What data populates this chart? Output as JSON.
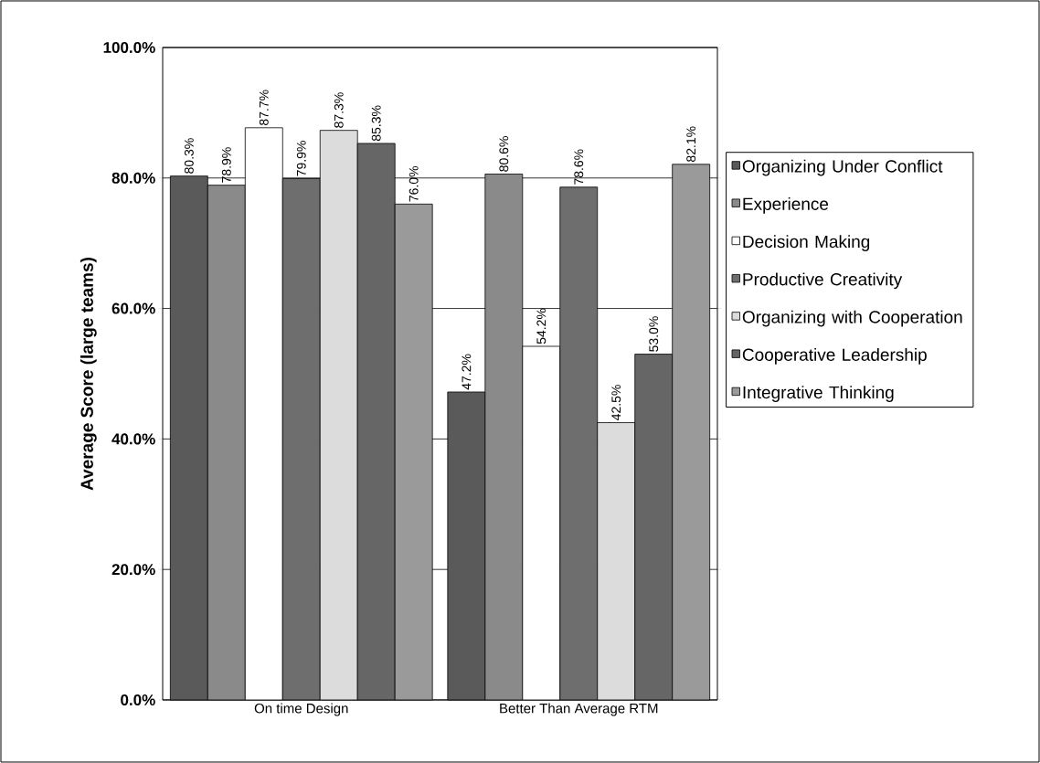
{
  "chart_data": {
    "type": "bar",
    "ylabel": "Average Score (large teams)",
    "categories": [
      "On time Design",
      "Better Than Average RTM"
    ],
    "series": [
      {
        "name": "Organizing Under Conflict",
        "color": "#5a5a5a",
        "values": [
          80.3,
          47.2
        ],
        "value_labels": [
          "80.3%",
          "47.2%"
        ]
      },
      {
        "name": "Experience",
        "color": "#8a8a8a",
        "values": [
          78.9,
          80.6
        ],
        "value_labels": [
          "78.9%",
          "80.6%"
        ]
      },
      {
        "name": "Decision Making",
        "color": "#ffffff",
        "values": [
          87.7,
          54.2
        ],
        "value_labels": [
          "87.7%",
          "54.2%"
        ]
      },
      {
        "name": "Productive Creativity",
        "color": "#6e6e6e",
        "values": [
          79.9,
          78.6
        ],
        "value_labels": [
          "79.9%",
          "78.6%"
        ]
      },
      {
        "name": "Organizing with Cooperation",
        "color": "#dcdcdc",
        "values": [
          87.3,
          42.5
        ],
        "value_labels": [
          "87.3%",
          "42.5%"
        ]
      },
      {
        "name": "Cooperative Leadership",
        "color": "#666666",
        "values": [
          85.3,
          53.0
        ],
        "value_labels": [
          "85.3%",
          "53.0%"
        ]
      },
      {
        "name": "Integrative Thinking",
        "color": "#9a9a9a",
        "values": [
          76.0,
          82.1
        ],
        "value_labels": [
          "76.0%",
          "82.1%"
        ]
      }
    ],
    "ylim": [
      0,
      100
    ],
    "yticks": [
      {
        "value": 0,
        "label": "0.0%"
      },
      {
        "value": 20,
        "label": "20.0%"
      },
      {
        "value": 40,
        "label": "40.0%"
      },
      {
        "value": 60,
        "label": "60.0%"
      },
      {
        "value": 80,
        "label": "80.0%"
      },
      {
        "value": 100,
        "label": "100.0%"
      }
    ],
    "grid": "y",
    "legend": "right"
  }
}
